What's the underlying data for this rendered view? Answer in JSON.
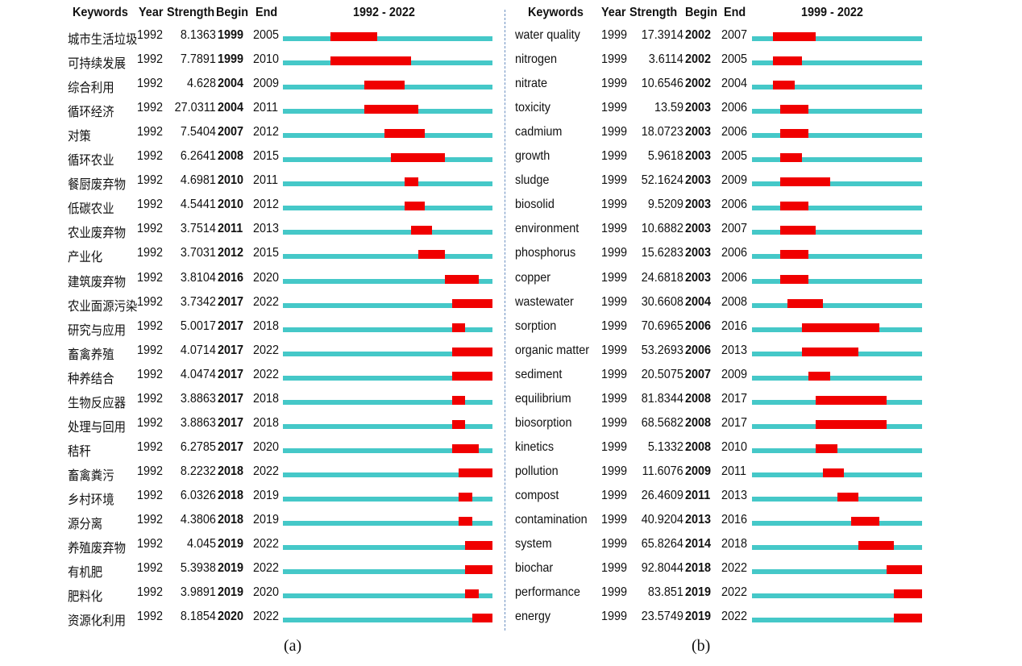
{
  "chart_data": [
    {
      "type": "table",
      "panel_label": "(a)",
      "columns": [
        "Keywords",
        "Year",
        "Strength",
        "Begin",
        "End"
      ],
      "range_label": "1992 - 2022",
      "range": [
        1992,
        2022
      ],
      "colors": {
        "track": "#45c8c8",
        "burst": "#f00000"
      },
      "rows": [
        {
          "keyword": "城市生活垃圾",
          "year": "1992",
          "strength": "8.1363",
          "begin": "1999",
          "end": "2005"
        },
        {
          "keyword": "可持续发展",
          "year": "1992",
          "strength": "7.7891",
          "begin": "1999",
          "end": "2010"
        },
        {
          "keyword": "综合利用",
          "year": "1992",
          "strength": "4.628",
          "begin": "2004",
          "end": "2009"
        },
        {
          "keyword": "循环经济",
          "year": "1992",
          "strength": "27.0311",
          "begin": "2004",
          "end": "2011"
        },
        {
          "keyword": "对策",
          "year": "1992",
          "strength": "7.5404",
          "begin": "2007",
          "end": "2012"
        },
        {
          "keyword": "循环农业",
          "year": "1992",
          "strength": "6.2641",
          "begin": "2008",
          "end": "2015"
        },
        {
          "keyword": "餐厨废弃物",
          "year": "1992",
          "strength": "4.6981",
          "begin": "2010",
          "end": "2011"
        },
        {
          "keyword": "低碳农业",
          "year": "1992",
          "strength": "4.5441",
          "begin": "2010",
          "end": "2012"
        },
        {
          "keyword": "农业废弃物",
          "year": "1992",
          "strength": "3.7514",
          "begin": "2011",
          "end": "2013"
        },
        {
          "keyword": "产业化",
          "year": "1992",
          "strength": "3.7031",
          "begin": "2012",
          "end": "2015"
        },
        {
          "keyword": "建筑废弃物",
          "year": "1992",
          "strength": "3.8104",
          "begin": "2016",
          "end": "2020"
        },
        {
          "keyword": "农业面源污染",
          "year": "1992",
          "strength": "3.7342",
          "begin": "2017",
          "end": "2022"
        },
        {
          "keyword": "研究与应用",
          "year": "1992",
          "strength": "5.0017",
          "begin": "2017",
          "end": "2018"
        },
        {
          "keyword": "畜禽养殖",
          "year": "1992",
          "strength": "4.0714",
          "begin": "2017",
          "end": "2022"
        },
        {
          "keyword": "种养结合",
          "year": "1992",
          "strength": "4.0474",
          "begin": "2017",
          "end": "2022"
        },
        {
          "keyword": "生物反应器",
          "year": "1992",
          "strength": "3.8863",
          "begin": "2017",
          "end": "2018"
        },
        {
          "keyword": "处理与回用",
          "year": "1992",
          "strength": "3.8863",
          "begin": "2017",
          "end": "2018"
        },
        {
          "keyword": "秸秆",
          "year": "1992",
          "strength": "6.2785",
          "begin": "2017",
          "end": "2020"
        },
        {
          "keyword": "畜禽粪污",
          "year": "1992",
          "strength": "8.2232",
          "begin": "2018",
          "end": "2022"
        },
        {
          "keyword": "乡村环境",
          "year": "1992",
          "strength": "6.0326",
          "begin": "2018",
          "end": "2019"
        },
        {
          "keyword": "源分离",
          "year": "1992",
          "strength": "4.3806",
          "begin": "2018",
          "end": "2019"
        },
        {
          "keyword": "养殖废弃物",
          "year": "1992",
          "strength": "4.045",
          "begin": "2019",
          "end": "2022"
        },
        {
          "keyword": "有机肥",
          "year": "1992",
          "strength": "5.3938",
          "begin": "2019",
          "end": "2022"
        },
        {
          "keyword": "肥料化",
          "year": "1992",
          "strength": "3.9891",
          "begin": "2019",
          "end": "2020"
        },
        {
          "keyword": "资源化利用",
          "year": "1992",
          "strength": "8.1854",
          "begin": "2020",
          "end": "2022"
        }
      ]
    },
    {
      "type": "table",
      "panel_label": "(b)",
      "columns": [
        "Keywords",
        "Year",
        "Strength",
        "Begin",
        "End"
      ],
      "range_label": "1999 - 2022",
      "range": [
        1999,
        2022
      ],
      "colors": {
        "track": "#45c8c8",
        "burst": "#f00000"
      },
      "rows": [
        {
          "keyword": "water quality",
          "year": "1999",
          "strength": "17.3914",
          "begin": "2002",
          "end": "2007"
        },
        {
          "keyword": "nitrogen",
          "year": "1999",
          "strength": "3.6114",
          "begin": "2002",
          "end": "2005"
        },
        {
          "keyword": "nitrate",
          "year": "1999",
          "strength": "10.6546",
          "begin": "2002",
          "end": "2004"
        },
        {
          "keyword": "toxicity",
          "year": "1999",
          "strength": "13.59",
          "begin": "2003",
          "end": "2006"
        },
        {
          "keyword": "cadmium",
          "year": "1999",
          "strength": "18.0723",
          "begin": "2003",
          "end": "2006"
        },
        {
          "keyword": "growth",
          "year": "1999",
          "strength": "5.9618",
          "begin": "2003",
          "end": "2005"
        },
        {
          "keyword": "sludge",
          "year": "1999",
          "strength": "52.1624",
          "begin": "2003",
          "end": "2009"
        },
        {
          "keyword": "biosolid",
          "year": "1999",
          "strength": "9.5209",
          "begin": "2003",
          "end": "2006"
        },
        {
          "keyword": "environment",
          "year": "1999",
          "strength": "10.6882",
          "begin": "2003",
          "end": "2007"
        },
        {
          "keyword": "phosphorus",
          "year": "1999",
          "strength": "15.6283",
          "begin": "2003",
          "end": "2006"
        },
        {
          "keyword": "copper",
          "year": "1999",
          "strength": "24.6818",
          "begin": "2003",
          "end": "2006"
        },
        {
          "keyword": "wastewater",
          "year": "1999",
          "strength": "30.6608",
          "begin": "2004",
          "end": "2008"
        },
        {
          "keyword": "sorption",
          "year": "1999",
          "strength": "70.6965",
          "begin": "2006",
          "end": "2016"
        },
        {
          "keyword": "organic matter",
          "year": "1999",
          "strength": "53.2693",
          "begin": "2006",
          "end": "2013"
        },
        {
          "keyword": "sediment",
          "year": "1999",
          "strength": "20.5075",
          "begin": "2007",
          "end": "2009"
        },
        {
          "keyword": "equilibrium",
          "year": "1999",
          "strength": "81.8344",
          "begin": "2008",
          "end": "2017"
        },
        {
          "keyword": "biosorption",
          "year": "1999",
          "strength": "68.5682",
          "begin": "2008",
          "end": "2017"
        },
        {
          "keyword": "kinetics",
          "year": "1999",
          "strength": "5.1332",
          "begin": "2008",
          "end": "2010"
        },
        {
          "keyword": "pollution",
          "year": "1999",
          "strength": "11.6076",
          "begin": "2009",
          "end": "2011"
        },
        {
          "keyword": "compost",
          "year": "1999",
          "strength": "26.4609",
          "begin": "2011",
          "end": "2013"
        },
        {
          "keyword": "contamination",
          "year": "1999",
          "strength": "40.9204",
          "begin": "2013",
          "end": "2016"
        },
        {
          "keyword": "system",
          "year": "1999",
          "strength": "65.8264",
          "begin": "2014",
          "end": "2018"
        },
        {
          "keyword": "biochar",
          "year": "1999",
          "strength": "92.8044",
          "begin": "2018",
          "end": "2022"
        },
        {
          "keyword": "performance",
          "year": "1999",
          "strength": "83.851",
          "begin": "2019",
          "end": "2022"
        },
        {
          "keyword": "energy",
          "year": "1999",
          "strength": "23.5749",
          "begin": "2019",
          "end": "2022"
        }
      ]
    }
  ]
}
